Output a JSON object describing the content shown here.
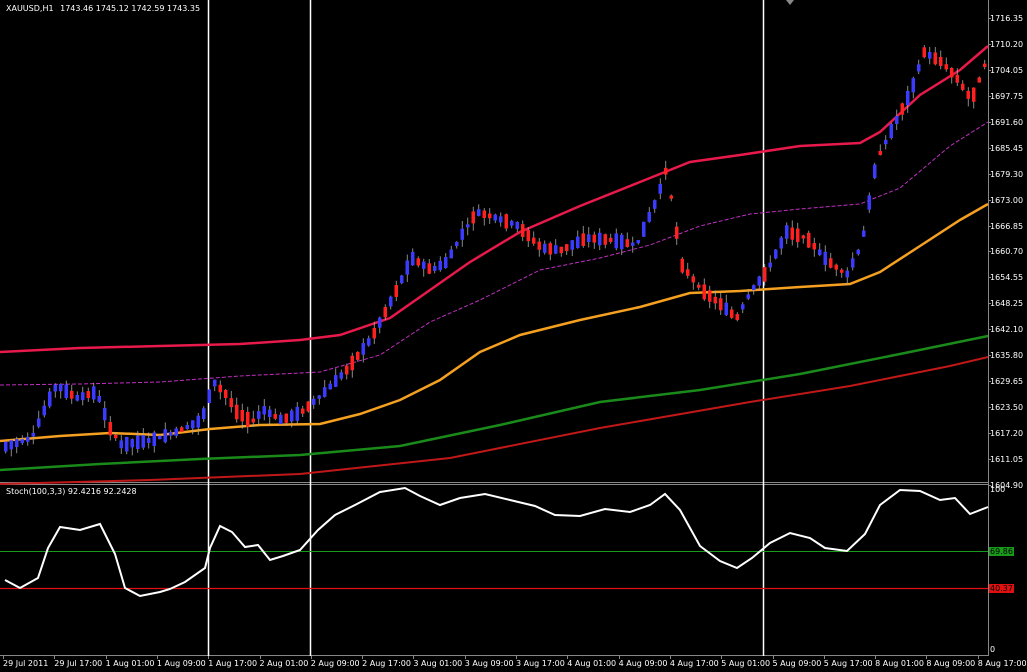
{
  "main_header": {
    "symbol": "XAUUSD,H1",
    "ohlc": "1743.46 1745.12 1742.59 1743.35"
  },
  "stoch_header": {
    "title": "Stoch(100,3,3) 92.4216 92.2428"
  },
  "price_axis": [
    "1716.35",
    "1710.20",
    "1704.05",
    "1697.75",
    "1691.60",
    "1685.45",
    "1679.30",
    "1673.00",
    "1666.85",
    "1660.70",
    "1654.55",
    "1648.25",
    "1642.10",
    "1635.80",
    "1629.65",
    "1623.50",
    "1617.20",
    "1611.05",
    "1604.90"
  ],
  "stoch_axis": {
    "top": "100",
    "bottom": "0",
    "upper_level": "69.86",
    "lower_level": "40.37"
  },
  "time_axis": [
    "29 Jul 2011",
    "29 Jul 17:00",
    "1 Aug 01:00",
    "1 Aug 09:00",
    "1 Aug 17:00",
    "2 Aug 01:00",
    "2 Aug 09:00",
    "2 Aug 17:00",
    "3 Aug 01:00",
    "3 Aug 09:00",
    "3 Aug 17:00",
    "4 Aug 01:00",
    "4 Aug 09:00",
    "4 Aug 17:00",
    "5 Aug 01:00",
    "5 Aug 09:00",
    "5 Aug 17:00",
    "8 Aug 01:00",
    "8 Aug 09:00",
    "8 Aug 17:00"
  ],
  "colors": {
    "background": "#000000",
    "bull_candle": "#3b3bff",
    "bear_candle": "#ff2020",
    "upper_band": "#e8194b",
    "mid_band": "#c030c0",
    "ma_orange": "#f5a020",
    "ma_green": "#1a8a1a",
    "ma_red": "#c01818",
    "stoch_line": "#ffffff",
    "level_upper": "#1a9a1a",
    "level_lower": "#e01010"
  }
}
